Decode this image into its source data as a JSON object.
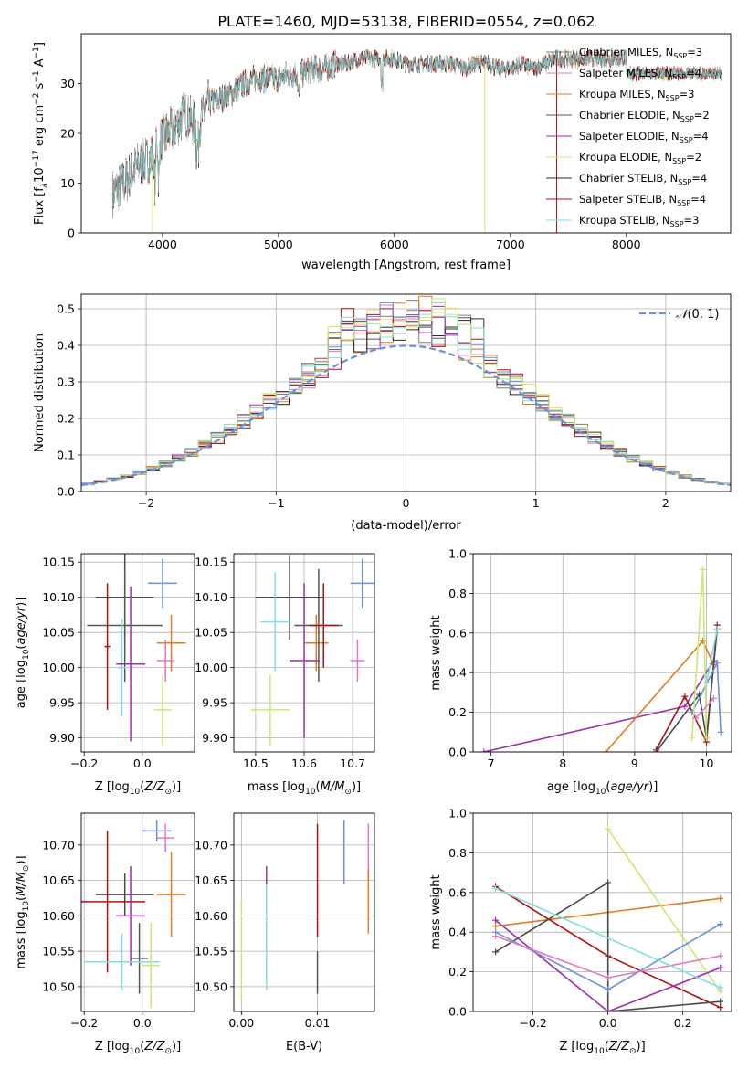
{
  "figure": {
    "title": "PLATE=1460, MJD=53138, FIBERID=0554, z=0.062",
    "series_colors": [
      "#7f7f7f",
      "#e377c2",
      "#e07b20",
      "#555555",
      "#9b2fae",
      "#dbe36a",
      "#2b2b2b",
      "#b01010",
      "#7fe0e0"
    ],
    "extra_colors": {
      "blue": "#6b8fdc",
      "lime": "#c8e873",
      "dark": "#4a4a4a"
    }
  },
  "chart_data": [
    {
      "id": "spectrum",
      "type": "line",
      "xlabel": "wavelength [Angstrom, rest frame]",
      "ylabel": "Flux [f",
      "xlim": [
        3300,
        8900
      ],
      "ylim": [
        0,
        40
      ],
      "xticks": [
        4000,
        5000,
        6000,
        7000,
        8000
      ],
      "yticks": [
        0,
        10,
        20,
        30
      ],
      "grid": false,
      "legend": "top-right",
      "x": [
        3580,
        3700,
        3800,
        3900,
        4000,
        4100,
        4200,
        4300,
        4400,
        4500,
        4600,
        4700,
        4800,
        4900,
        5000,
        5100,
        5200,
        5300,
        5400,
        5500,
        5600,
        5700,
        5800,
        5900,
        6000,
        6100,
        6200,
        6300,
        6400,
        6500,
        6600,
        6700,
        6800,
        6900,
        7000,
        7100,
        7200,
        7300,
        7400
      ],
      "y": [
        8,
        11,
        14,
        15,
        19,
        21,
        24,
        21,
        26,
        27,
        28,
        30,
        31,
        31,
        31,
        32,
        32,
        33,
        33,
        34,
        34,
        35,
        35,
        35,
        35,
        34,
        34,
        34,
        34,
        34,
        33,
        34,
        34,
        33,
        33,
        34,
        33,
        34,
        35
      ],
      "series": [
        {
          "name": "Chabrier MILES, N",
          "nssp": "3"
        },
        {
          "name": "Salpeter MILES, N",
          "nssp": "4"
        },
        {
          "name": "Kroupa MILES, N",
          "nssp": "3"
        },
        {
          "name": "Chabrier ELODIE, N",
          "nssp": "2"
        },
        {
          "name": "Salpeter ELODIE, N",
          "nssp": "4"
        },
        {
          "name": "Kroupa ELODIE, N",
          "nssp": "2"
        },
        {
          "name": "Chabrier STELIB, N",
          "nssp": "4"
        },
        {
          "name": "Salpeter STELIB, N",
          "nssp": "4"
        },
        {
          "name": "Kroupa STELIB, N",
          "nssp": "3"
        }
      ]
    },
    {
      "id": "residuals",
      "type": "bar",
      "xlabel": "(data-model)/error",
      "ylabel": "Normed distribution",
      "xlim": [
        -2.5,
        2.5
      ],
      "ylim": [
        0,
        0.54
      ],
      "xticks": [
        -2,
        -1,
        0,
        1,
        2
      ],
      "yticks": [
        0.0,
        0.1,
        0.2,
        0.3,
        0.4,
        0.5
      ],
      "grid": true,
      "legend": "top-right",
      "legend_label": "(0, 1)",
      "bin_width": 0.1,
      "bins_start": -2.5,
      "gaussian": {
        "mu": 0,
        "sigma": 1
      }
    },
    {
      "id": "age-vs-Z",
      "type": "scatter",
      "xlabel": "Z [log",
      "ylabel": "age  [log",
      "xlim": [
        -0.21,
        0.18
      ],
      "ylim": [
        9.88,
        10.162
      ],
      "xticks": [
        -0.2,
        0.0
      ],
      "yticks": [
        9.9,
        9.95,
        10.0,
        10.05,
        10.1,
        10.15
      ],
      "grid": true,
      "points": [
        {
          "color": "blue",
          "x": 0.07,
          "y": 10.12,
          "xerr": 0.05,
          "yerr": 0.035
        },
        {
          "color": "lime",
          "x": 0.07,
          "y": 9.94,
          "xerr": 0.03,
          "yerr": 0.05
        },
        {
          "color": "orange",
          "x": 0.1,
          "y": 10.035,
          "xerr": 0.05,
          "yerr": 0.04
        },
        {
          "color": "pink",
          "x": 0.08,
          "y": 10.01,
          "xerr": 0.03,
          "yerr": 0.03
        },
        {
          "color": "dark",
          "x": -0.06,
          "y": 10.1,
          "xerr": 0.1,
          "yerr": 0.07
        },
        {
          "color": "darkgrey",
          "x": -0.06,
          "y": 10.06,
          "xerr": 0.13,
          "yerr": 0.08
        },
        {
          "color": "teal",
          "x": -0.07,
          "y": 10.0,
          "xerr": 0.015,
          "yerr": 0.07
        },
        {
          "color": "purple",
          "x": -0.04,
          "y": 10.005,
          "xerr": 0.05,
          "yerr": 0.11
        },
        {
          "color": "red",
          "x": -0.12,
          "y": 10.03,
          "xerr": 0.01,
          "yerr": 0.09
        }
      ]
    },
    {
      "id": "age-vs-mass",
      "type": "scatter",
      "xlabel": "mass [log",
      "ylabel": "",
      "xlim": [
        10.455,
        10.745
      ],
      "ylim": [
        9.88,
        10.162
      ],
      "xticks": [
        10.5,
        10.6,
        10.7
      ],
      "yticks": [
        9.9,
        9.95,
        10.0,
        10.05,
        10.1,
        10.15
      ],
      "grid": true,
      "points": [
        {
          "color": "blue",
          "x": 10.72,
          "y": 10.12,
          "xerr": 0.025,
          "yerr": 0.035
        },
        {
          "color": "lime",
          "x": 10.53,
          "y": 9.94,
          "xerr": 0.04,
          "yerr": 0.05
        },
        {
          "color": "orange",
          "x": 10.625,
          "y": 10.035,
          "xerr": 0.025,
          "yerr": 0.04
        },
        {
          "color": "pink",
          "x": 10.71,
          "y": 10.01,
          "xerr": 0.015,
          "yerr": 0.03
        },
        {
          "color": "dark",
          "x": 10.57,
          "y": 10.1,
          "xerr": 0.07,
          "yerr": 0.06
        },
        {
          "color": "darkgrey",
          "x": 10.63,
          "y": 10.06,
          "xerr": 0.05,
          "yerr": 0.08
        },
        {
          "color": "teal",
          "x": 10.54,
          "y": 10.065,
          "xerr": 0.03,
          "yerr": 0.07
        },
        {
          "color": "purple",
          "x": 10.6,
          "y": 10.01,
          "xerr": 0.03,
          "yerr": 0.11
        },
        {
          "color": "red",
          "x": 10.64,
          "y": 10.06,
          "xerr": 0.03,
          "yerr": 0.06
        }
      ]
    },
    {
      "id": "weight-vs-age",
      "type": "line",
      "xlabel": "age  [log",
      "ylabel": "mass weight",
      "xlim": [
        6.75,
        10.35
      ],
      "ylim": [
        0,
        1
      ],
      "xticks": [
        7,
        8,
        9,
        10
      ],
      "yticks": [
        0.0,
        0.2,
        0.4,
        0.6,
        0.8,
        1.0
      ],
      "grid": true,
      "series": [
        {
          "color": "purple",
          "x": [
            6.9,
            9.7,
            10.1
          ],
          "y": [
            0.0,
            0.23,
            0.46
          ]
        },
        {
          "color": "orange",
          "x": [
            8.6,
            9.95,
            10.1
          ],
          "y": [
            0.0,
            0.56,
            0.44
          ]
        },
        {
          "color": "red",
          "x": [
            9.3,
            9.7,
            10.0,
            10.15
          ],
          "y": [
            0.01,
            0.28,
            0.05,
            0.64
          ]
        },
        {
          "color": "dark",
          "x": [
            9.3,
            9.9,
            10.0,
            10.15
          ],
          "y": [
            0.0,
            0.29,
            0.07,
            0.62
          ]
        },
        {
          "color": "blue",
          "x": [
            9.8,
            10.15,
            10.2
          ],
          "y": [
            0.2,
            0.45,
            0.1
          ]
        },
        {
          "color": "lime",
          "x": [
            9.8,
            9.95,
            10.0
          ],
          "y": [
            0.07,
            0.92,
            0.07
          ]
        },
        {
          "color": "pink",
          "x": [
            9.85,
            10.1
          ],
          "y": [
            0.17,
            0.27
          ]
        },
        {
          "color": "teal",
          "x": [
            10.0,
            10.15
          ],
          "y": [
            0.35,
            0.62
          ]
        }
      ]
    },
    {
      "id": "mass-vs-Z",
      "type": "scatter",
      "xlabel": "Z [log",
      "ylabel": "mass [log",
      "xlim": [
        -0.21,
        0.18
      ],
      "ylim": [
        10.465,
        10.745
      ],
      "xticks": [
        -0.2,
        0.0
      ],
      "yticks": [
        10.5,
        10.55,
        10.6,
        10.65,
        10.7
      ],
      "grid": true,
      "points": [
        {
          "color": "blue",
          "x": 0.05,
          "y": 10.72,
          "xerr": 0.05,
          "yerr": 0.015
        },
        {
          "color": "pink",
          "x": 0.08,
          "y": 10.71,
          "xerr": 0.03,
          "yerr": 0.02
        },
        {
          "color": "orange",
          "x": 0.1,
          "y": 10.63,
          "xerr": 0.05,
          "yerr": 0.06
        },
        {
          "color": "dark",
          "x": -0.06,
          "y": 10.63,
          "xerr": 0.1,
          "yerr": 0.03
        },
        {
          "color": "red",
          "x": -0.12,
          "y": 10.62,
          "xerr": 0.13,
          "yerr": 0.1
        },
        {
          "color": "purple",
          "x": -0.04,
          "y": 10.6,
          "xerr": 0.05,
          "yerr": 0.07
        },
        {
          "color": "darkgrey",
          "x": -0.01,
          "y": 10.54,
          "xerr": 0.03,
          "yerr": 0.05
        },
        {
          "color": "teal",
          "x": -0.07,
          "y": 10.535,
          "xerr": 0.13,
          "yerr": 0.04
        },
        {
          "color": "lime",
          "x": 0.03,
          "y": 10.53,
          "xerr": 0.03,
          "yerr": 0.06
        }
      ]
    },
    {
      "id": "mass-vs-ebv",
      "type": "scatter",
      "xlabel": "E(B-V)",
      "ylabel": "",
      "xlim": [
        -0.001,
        0.0175
      ],
      "ylim": [
        10.465,
        10.745
      ],
      "xticks": [
        0.0,
        0.01
      ],
      "yticks": [
        10.5,
        10.55,
        10.6,
        10.65,
        10.7
      ],
      "grid": true,
      "points": [
        {
          "color": "blue",
          "x": 0.0135,
          "y": 10.69,
          "xerr": 0,
          "yerr": 0.045
        },
        {
          "color": "pink",
          "x": 0.0167,
          "y": 10.69,
          "xerr": 0,
          "yerr": 0.04
        },
        {
          "color": "orange",
          "x": 0.0167,
          "y": 10.62,
          "xerr": 0,
          "yerr": 0.045
        },
        {
          "color": "red",
          "x": 0.01,
          "y": 10.65,
          "xerr": 0,
          "yerr": 0.08
        },
        {
          "color": "purple",
          "x": 0.0033,
          "y": 10.65,
          "xerr": 0,
          "yerr": 0.02
        },
        {
          "color": "darkgrey",
          "x": 0.01,
          "y": 10.52,
          "xerr": 0,
          "yerr": 0.03
        },
        {
          "color": "teal",
          "x": 0.0033,
          "y": 10.57,
          "xerr": 0,
          "yerr": 0.075
        },
        {
          "color": "lime",
          "x": 0.0,
          "y": 10.55,
          "xerr": 0,
          "yerr": 0.07
        }
      ]
    },
    {
      "id": "weight-vs-Z",
      "type": "line",
      "xlabel": "Z [log",
      "ylabel": "mass weight",
      "xlim": [
        -0.36,
        0.33
      ],
      "ylim": [
        0,
        1
      ],
      "xticks": [
        -0.2,
        0.0,
        0.2
      ],
      "yticks": [
        0.0,
        0.2,
        0.4,
        0.6,
        0.8,
        1.0
      ],
      "grid": true,
      "series": [
        {
          "color": "orange",
          "x": [
            -0.3,
            0.0,
            0.3
          ],
          "y": [
            0.43,
            0.5,
            0.57
          ]
        },
        {
          "color": "red",
          "x": [
            -0.3,
            0.0,
            0.3
          ],
          "y": [
            0.63,
            0.28,
            0.02
          ]
        },
        {
          "color": "lime",
          "x": [
            0.0,
            0.3
          ],
          "y": [
            0.92,
            0.1
          ]
        },
        {
          "color": "dark",
          "x": [
            -0.3,
            0.0,
            0.0,
            0.3
          ],
          "y": [
            0.3,
            0.65,
            0.0,
            0.05
          ]
        },
        {
          "color": "purple",
          "x": [
            -0.3,
            0.0,
            0.3
          ],
          "y": [
            0.46,
            0.0,
            0.22
          ]
        },
        {
          "color": "blue",
          "x": [
            -0.3,
            0.0,
            0.3
          ],
          "y": [
            0.4,
            0.11,
            0.44
          ]
        },
        {
          "color": "pink",
          "x": [
            -0.3,
            0.0,
            0.3
          ],
          "y": [
            0.38,
            0.17,
            0.28
          ]
        },
        {
          "color": "teal",
          "x": [
            -0.3,
            0.3
          ],
          "y": [
            0.62,
            0.12
          ]
        }
      ]
    }
  ]
}
